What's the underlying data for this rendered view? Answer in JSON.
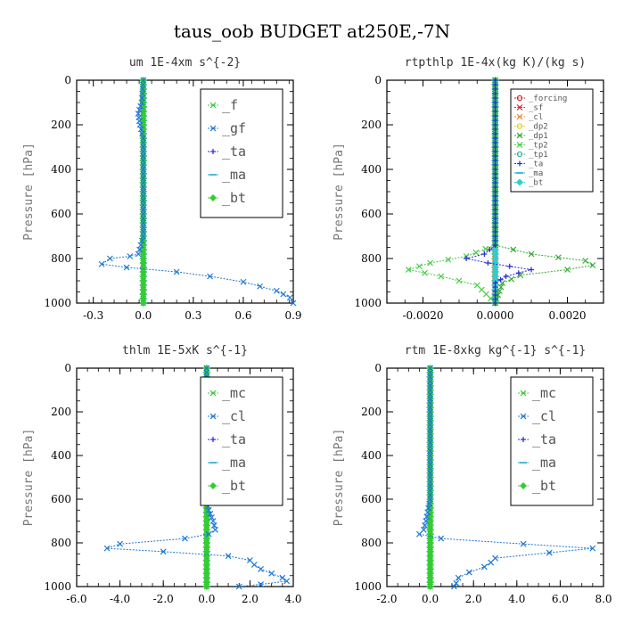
{
  "figure": {
    "title": "taus_oob  BUDGET at250E,-7N"
  },
  "chart_data": [
    {
      "type": "line",
      "title": "um  1E-4xm s^{-2}",
      "ylabel": "Pressure [hPa]",
      "xlim": [
        -0.4,
        0.9
      ],
      "ylim": [
        1000,
        0
      ],
      "xticks": [
        -0.3,
        0.0,
        0.3,
        0.6,
        0.9
      ],
      "xtick_labels": [
        "-0.3",
        "0.0",
        "0.3",
        "0.6",
        "0.9"
      ],
      "yticks": [
        0,
        200,
        400,
        600,
        800,
        1000
      ],
      "ytick_labels": [
        "0",
        "200",
        "400",
        "600",
        "800",
        "1000"
      ],
      "legend_position": "top-right",
      "legend_size": "large",
      "series": [
        {
          "name": "_f",
          "color": "#33cc33",
          "marker": "x",
          "points": [
            [
              0,
              0
            ],
            [
              0,
              1000
            ]
          ]
        },
        {
          "name": "_gf",
          "color": "#1f78d6",
          "marker": "x",
          "points": [
            [
              0,
              0
            ],
            [
              -0.01,
              100
            ],
            [
              -0.03,
              150
            ],
            [
              -0.02,
              200
            ],
            [
              0,
              260
            ],
            [
              0,
              700
            ],
            [
              -0.03,
              780
            ],
            [
              -0.08,
              790
            ],
            [
              -0.2,
              800
            ],
            [
              -0.25,
              825
            ],
            [
              -0.1,
              840
            ],
            [
              0.2,
              860
            ],
            [
              0.4,
              880
            ],
            [
              0.6,
              905
            ],
            [
              0.8,
              945
            ],
            [
              0.88,
              975
            ],
            [
              0.9,
              1000
            ]
          ]
        },
        {
          "name": "_ta",
          "color": "#2a2ad6",
          "marker": "+",
          "points": [
            [
              0,
              0
            ],
            [
              0,
              1000
            ]
          ]
        },
        {
          "name": "_ma",
          "color": "#22aacc",
          "marker": "-",
          "points": [
            [
              0,
              0
            ],
            [
              0,
              1000
            ]
          ]
        },
        {
          "name": "_bt",
          "color": "#33cc33",
          "marker": "diamond",
          "points": [
            [
              0,
              0
            ],
            [
              0,
              1000
            ]
          ]
        }
      ]
    },
    {
      "type": "line",
      "title": "rtpthlp  1E-4x(kg K)/(kg s)",
      "ylabel": "Pressure [hPa]",
      "xlim": [
        -0.003,
        0.003
      ],
      "ylim": [
        1000,
        0
      ],
      "xticks": [
        -0.002,
        0.0,
        0.002
      ],
      "xtick_labels": [
        "-0.0020",
        "0.0000",
        "0.0020"
      ],
      "yticks": [
        0,
        200,
        400,
        600,
        800,
        1000
      ],
      "ytick_labels": [
        "0",
        "200",
        "400",
        "600",
        "800",
        "1000"
      ],
      "legend_position": "top-right",
      "legend_size": "small",
      "series": [
        {
          "name": "_forcing",
          "color": "#cc2222",
          "marker": "circle",
          "points": [
            [
              0,
              0
            ],
            [
              0,
              1000
            ]
          ]
        },
        {
          "name": "_sf",
          "color": "#dd2222",
          "marker": "x",
          "points": [
            [
              0,
              0
            ],
            [
              0,
              1000
            ]
          ]
        },
        {
          "name": "_cl",
          "color": "#ee8833",
          "marker": "x",
          "points": [
            [
              0,
              0
            ],
            [
              0,
              1000
            ]
          ]
        },
        {
          "name": "_dp2",
          "color": "#ddcc22",
          "marker": "circle",
          "points": [
            [
              0,
              0
            ],
            [
              0,
              1000
            ]
          ]
        },
        {
          "name": "_dp1",
          "color": "#33aa33",
          "marker": "x",
          "points": [
            [
              0,
              0
            ],
            [
              0,
              740
            ],
            [
              0.001,
              780
            ],
            [
              0.0025,
              810
            ],
            [
              0.0027,
              830
            ],
            [
              0.002,
              850
            ],
            [
              0.0007,
              875
            ],
            [
              0.0002,
              910
            ],
            [
              0,
              1000
            ]
          ]
        },
        {
          "name": "_tp2",
          "color": "#44cc44",
          "marker": "x",
          "points": [
            [
              0,
              0
            ],
            [
              0,
              740
            ],
            [
              -0.0008,
              790
            ],
            [
              -0.0018,
              820
            ],
            [
              -0.0024,
              850
            ],
            [
              -0.0015,
              880
            ],
            [
              -0.0005,
              920
            ],
            [
              0,
              1000
            ]
          ]
        },
        {
          "name": "_tp1",
          "color": "#33aa99",
          "marker": "circle",
          "points": [
            [
              0,
              0
            ],
            [
              0,
              1000
            ]
          ]
        },
        {
          "name": "_ta",
          "color": "#2a2ad6",
          "marker": "+",
          "points": [
            [
              0,
              0
            ],
            [
              0,
              740
            ],
            [
              -0.0003,
              780
            ],
            [
              -0.0008,
              800
            ],
            [
              -0.0002,
              820
            ],
            [
              0.001,
              850
            ],
            [
              0.0003,
              880
            ],
            [
              0,
              910
            ],
            [
              0,
              1000
            ]
          ]
        },
        {
          "name": "_ma",
          "color": "#22aacc",
          "marker": "-",
          "points": [
            [
              0,
              0
            ],
            [
              0,
              1000
            ]
          ]
        },
        {
          "name": "_bt",
          "color": "#33cccc",
          "marker": "diamond",
          "points": [
            [
              0,
              0
            ],
            [
              0,
              1000
            ]
          ]
        }
      ]
    },
    {
      "type": "line",
      "title": "thlm  1E-5xK s^{-1}",
      "ylabel": "Pressure [hPa]",
      "xlim": [
        -6.0,
        4.0
      ],
      "ylim": [
        1000,
        0
      ],
      "xticks": [
        -6,
        -4,
        -2,
        0,
        2,
        4
      ],
      "xtick_labels": [
        "-6.0",
        "-4.0",
        "-2.0",
        "0.0",
        "2.0",
        "4.0"
      ],
      "yticks": [
        0,
        200,
        400,
        600,
        800,
        1000
      ],
      "ytick_labels": [
        "0",
        "200",
        "400",
        "600",
        "800",
        "1000"
      ],
      "legend_position": "top-right",
      "legend_size": "large",
      "series": [
        {
          "name": "_mc",
          "color": "#33cc33",
          "marker": "x",
          "points": [
            [
              0,
              0
            ],
            [
              0,
              1000
            ]
          ]
        },
        {
          "name": "_cl",
          "color": "#1f78d6",
          "marker": "x",
          "points": [
            [
              0,
              0
            ],
            [
              0,
              600
            ],
            [
              0.1,
              650
            ],
            [
              0.3,
              700
            ],
            [
              0.4,
              740
            ],
            [
              0.1,
              760
            ],
            [
              -1.0,
              780
            ],
            [
              -4.0,
              805
            ],
            [
              -4.6,
              825
            ],
            [
              -2.0,
              840
            ],
            [
              1.0,
              860
            ],
            [
              2.0,
              880
            ],
            [
              2.2,
              900
            ],
            [
              2.5,
              920
            ],
            [
              3.0,
              940
            ],
            [
              3.5,
              960
            ],
            [
              3.7,
              975
            ],
            [
              2.5,
              990
            ],
            [
              1.5,
              1000
            ]
          ]
        },
        {
          "name": "_ta",
          "color": "#2a2ad6",
          "marker": "+",
          "points": [
            [
              0,
              0
            ],
            [
              0,
              1000
            ]
          ]
        },
        {
          "name": "_ma",
          "color": "#22aacc",
          "marker": "-",
          "points": [
            [
              0,
              0
            ],
            [
              0,
              1000
            ]
          ]
        },
        {
          "name": "_bt",
          "color": "#33cc33",
          "marker": "diamond",
          "points": [
            [
              0,
              0
            ],
            [
              0,
              1000
            ]
          ]
        }
      ]
    },
    {
      "type": "line",
      "title": "rtm  1E-8xkg kg^{-1} s^{-1}",
      "ylabel": "Pressure [hPa]",
      "xlim": [
        -2.0,
        8.0
      ],
      "ylim": [
        1000,
        0
      ],
      "xticks": [
        -2,
        0,
        2,
        4,
        6,
        8
      ],
      "xtick_labels": [
        "-2.0",
        "0.0",
        "2.0",
        "4.0",
        "6.0",
        "8.0"
      ],
      "yticks": [
        0,
        200,
        400,
        600,
        800,
        1000
      ],
      "ytick_labels": [
        "0",
        "200",
        "400",
        "600",
        "800",
        "1000"
      ],
      "legend_position": "top-right",
      "legend_size": "large",
      "series": [
        {
          "name": "_mc",
          "color": "#33cc33",
          "marker": "x",
          "points": [
            [
              0,
              0
            ],
            [
              0,
              1000
            ]
          ]
        },
        {
          "name": "_cl",
          "color": "#1f78d6",
          "marker": "x",
          "points": [
            [
              0,
              0
            ],
            [
              0,
              600
            ],
            [
              -0.2,
              700
            ],
            [
              -0.3,
              740
            ],
            [
              -0.5,
              760
            ],
            [
              0.5,
              780
            ],
            [
              4.3,
              805
            ],
            [
              7.5,
              825
            ],
            [
              5.5,
              845
            ],
            [
              3.0,
              870
            ],
            [
              2.8,
              890
            ],
            [
              2.5,
              910
            ],
            [
              1.8,
              935
            ],
            [
              1.3,
              960
            ],
            [
              1.2,
              985
            ],
            [
              1.1,
              1000
            ]
          ]
        },
        {
          "name": "_ta",
          "color": "#2a2ad6",
          "marker": "+",
          "points": [
            [
              0,
              0
            ],
            [
              0,
              1000
            ]
          ]
        },
        {
          "name": "_ma",
          "color": "#22aacc",
          "marker": "-",
          "points": [
            [
              0,
              0
            ],
            [
              0,
              1000
            ]
          ]
        },
        {
          "name": "_bt",
          "color": "#33cc33",
          "marker": "diamond",
          "points": [
            [
              0,
              0
            ],
            [
              0,
              1000
            ]
          ]
        }
      ]
    }
  ]
}
